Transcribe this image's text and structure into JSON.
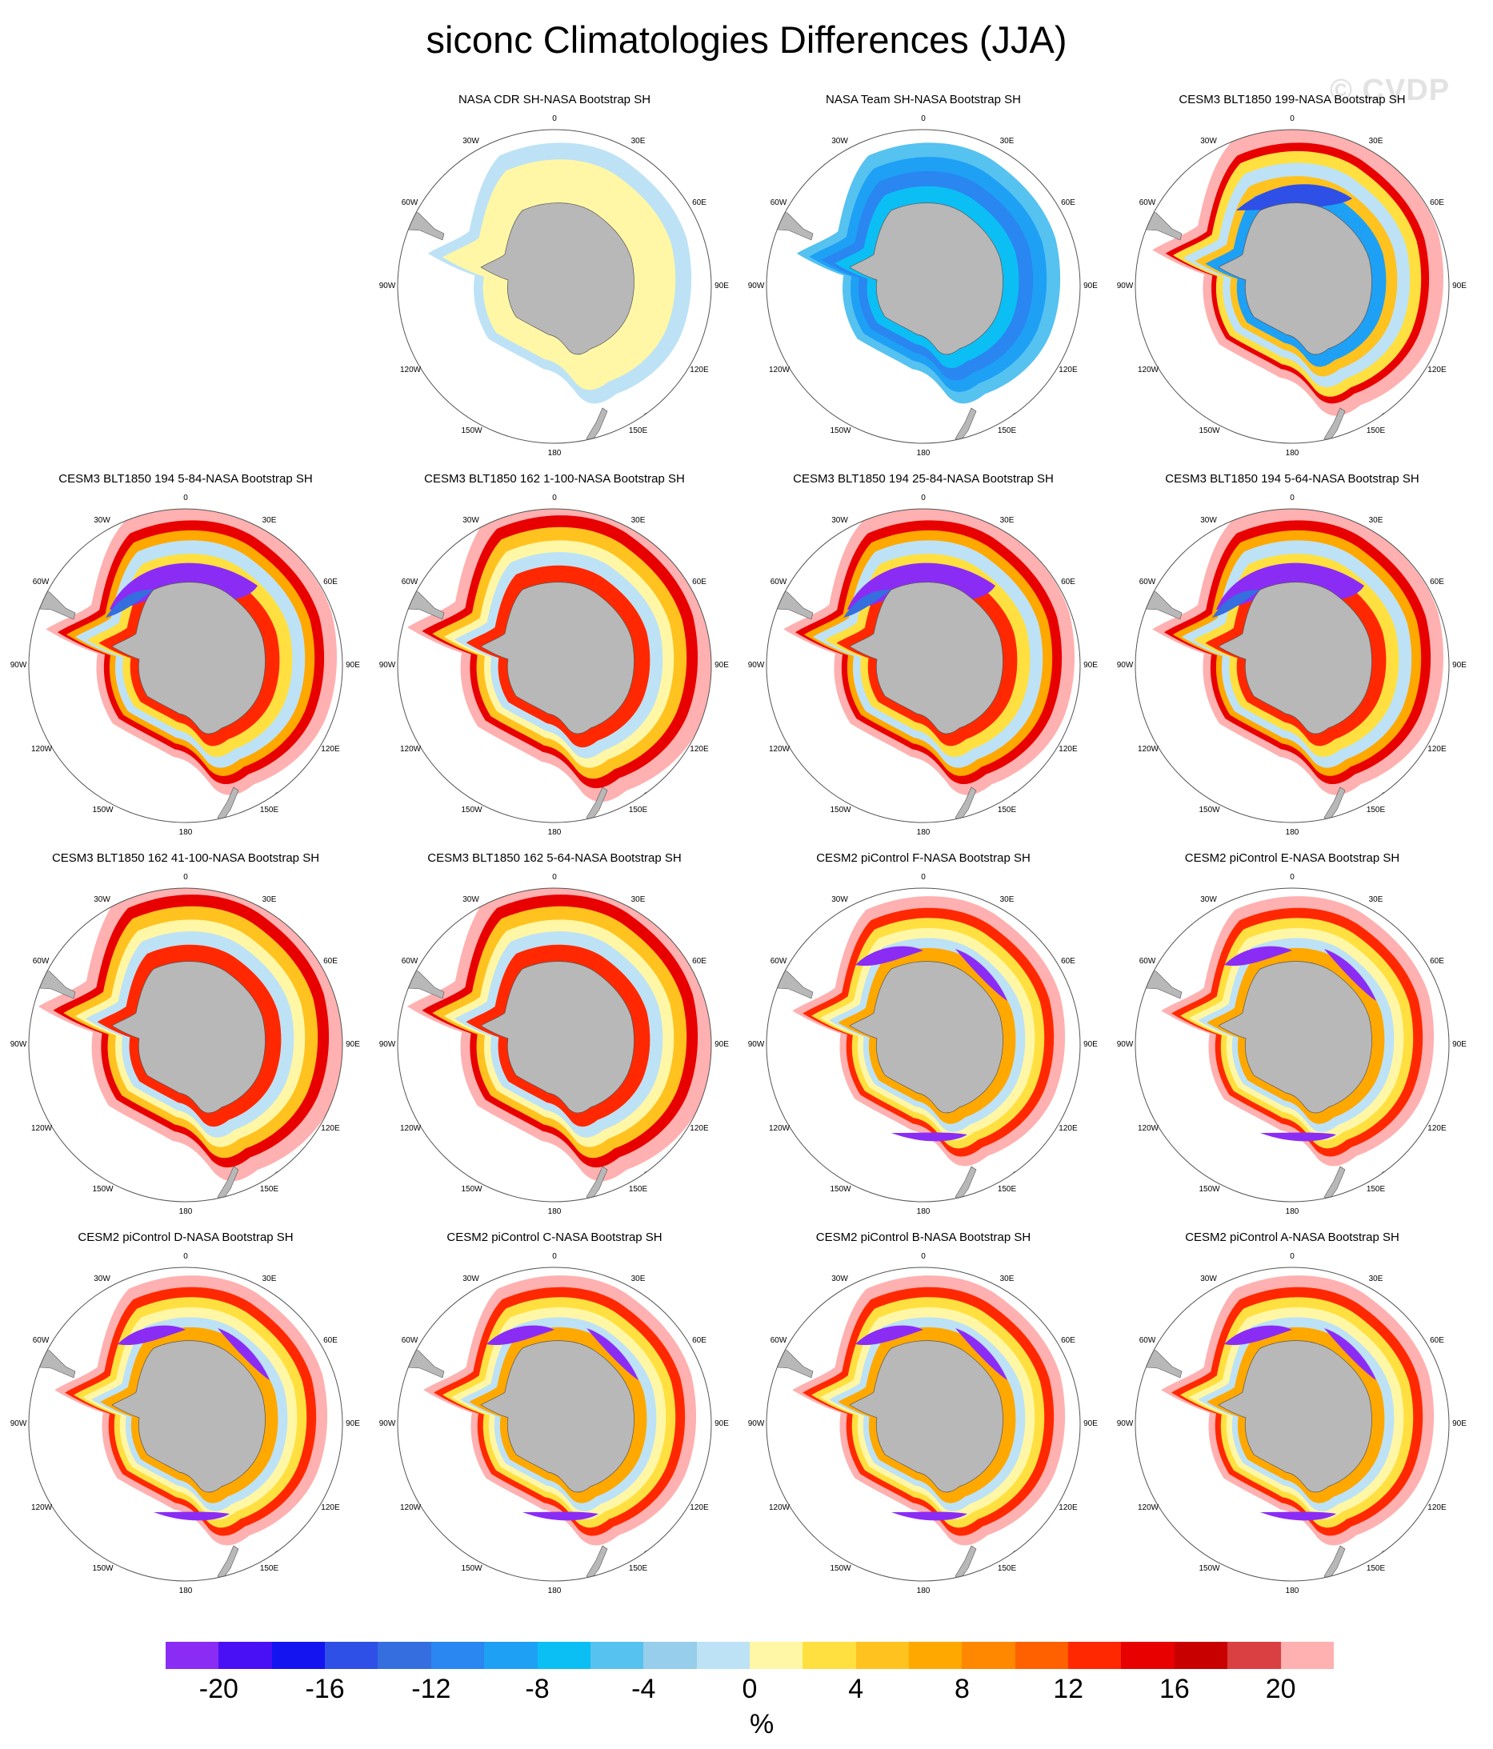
{
  "title": "siconc Climatologies Differences (JJA)",
  "watermark": "© CVDP",
  "panels": [
    {
      "title": "NASA CDR SH-NASA Bootstrap SH",
      "pattern": "cdr"
    },
    {
      "title": "NASA Team SH-NASA Bootstrap SH",
      "pattern": "team"
    },
    {
      "title": "CESM3 BLT1850 199-NASA Bootstrap SH",
      "pattern": "cesm3-mixed"
    },
    {
      "title": "CESM3 BLT1850 194 5-84-NASA Bootstrap SH",
      "pattern": "cesm3-purple"
    },
    {
      "title": "CESM3 BLT1850 162 1-100-NASA Bootstrap SH",
      "pattern": "cesm3-red"
    },
    {
      "title": "CESM3 BLT1850 194 25-84-NASA Bootstrap SH",
      "pattern": "cesm3-purple"
    },
    {
      "title": "CESM3 BLT1850 194 5-64-NASA Bootstrap SH",
      "pattern": "cesm3-purple"
    },
    {
      "title": "CESM3 BLT1850 162 41-100-NASA Bootstrap SH",
      "pattern": "cesm3-red"
    },
    {
      "title": "CESM3 BLT1850 162 5-64-NASA Bootstrap SH",
      "pattern": "cesm3-red"
    },
    {
      "title": "CESM2 piControl F-NASA Bootstrap SH",
      "pattern": "cesm2"
    },
    {
      "title": "CESM2 piControl E-NASA Bootstrap SH",
      "pattern": "cesm2"
    },
    {
      "title": "CESM2 piControl D-NASA Bootstrap SH",
      "pattern": "cesm2"
    },
    {
      "title": "CESM2 piControl C-NASA Bootstrap SH",
      "pattern": "cesm2"
    },
    {
      "title": "CESM2 piControl B-NASA Bootstrap SH",
      "pattern": "cesm2"
    },
    {
      "title": "CESM2 piControl A-NASA Bootstrap SH",
      "pattern": "cesm2"
    }
  ],
  "longitude_labels": [
    "0",
    "30E",
    "60E",
    "90E",
    "120E",
    "150E",
    "180",
    "150W",
    "120W",
    "90W",
    "60W",
    "30W"
  ],
  "colorbar": {
    "colors": [
      "#8b2cf5",
      "#4a10f5",
      "#1414f0",
      "#2e50e6",
      "#356edf",
      "#2a86f0",
      "#1ea0f5",
      "#0bbff5",
      "#55c2f0",
      "#96ceeb",
      "#bde2f5",
      "#fff7a6",
      "#ffe040",
      "#ffc21f",
      "#ffa800",
      "#ff8800",
      "#ff6000",
      "#ff2800",
      "#e80000",
      "#c80000",
      "#da3f42",
      "#ffb0b0"
    ],
    "labels": [
      "-20",
      "-16",
      "-12",
      "-8",
      "-4",
      "0",
      "4",
      "8",
      "12",
      "16",
      "20"
    ],
    "units": "%"
  }
}
